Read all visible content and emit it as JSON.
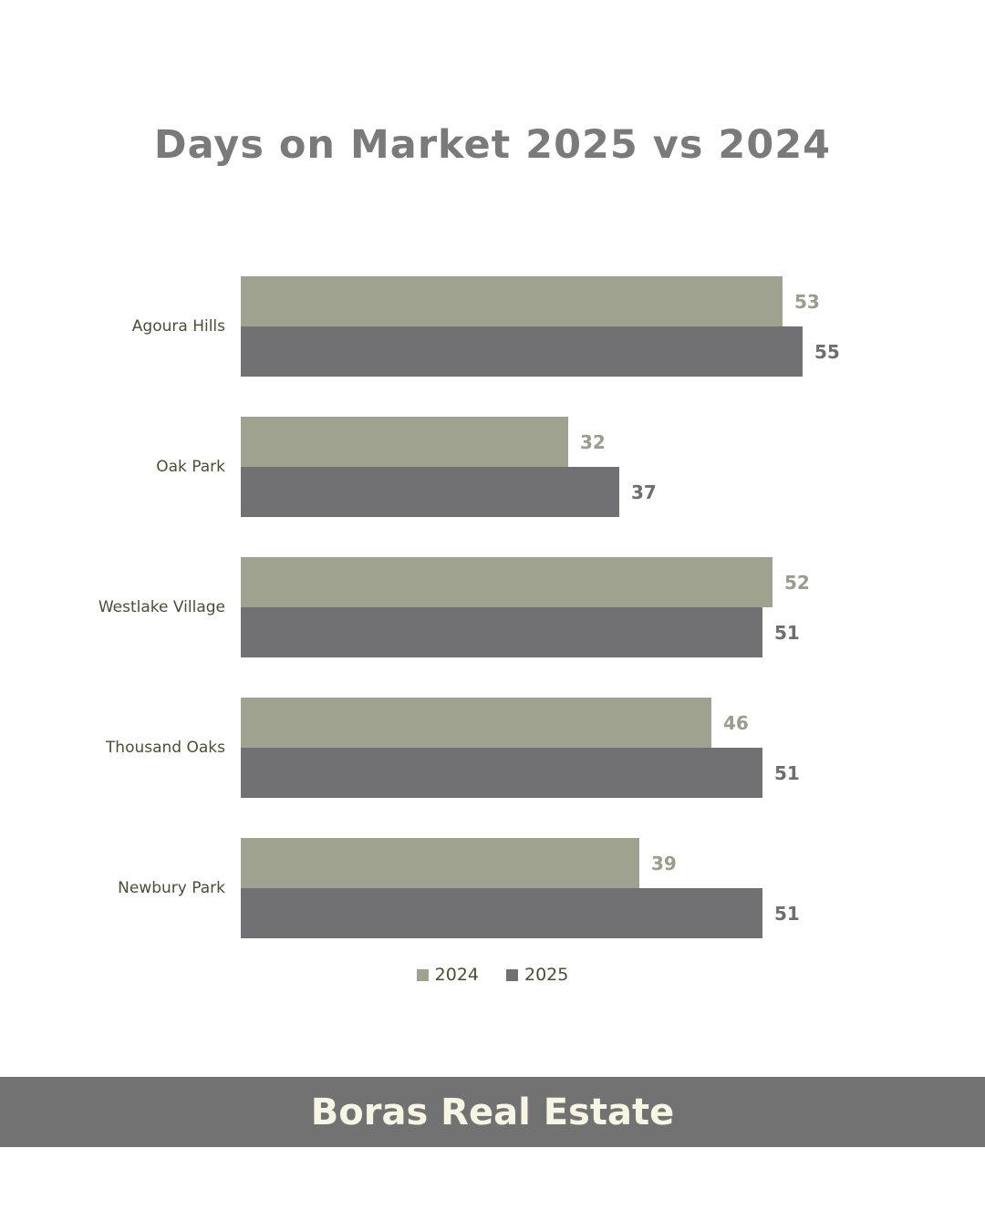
{
  "page": {
    "background": "#ffffff"
  },
  "header": {
    "title": "Days on Market 2025 vs 2024",
    "title_color": "#7a7a7a"
  },
  "chart_data": {
    "type": "bar",
    "orientation": "horizontal",
    "title": "Days on Market 2025 vs 2024",
    "categories": [
      "Agoura Hills",
      "Oak Park",
      "Westlake Village",
      "Thousand Oaks",
      "Newbury Park"
    ],
    "series": [
      {
        "name": "2024",
        "color": "#9ea28f",
        "label_color": "#999d8a",
        "values": [
          53,
          32,
          52,
          46,
          39
        ]
      },
      {
        "name": "2025",
        "color": "#717073",
        "label_color": "#6e6d70",
        "values": [
          55,
          37,
          51,
          51,
          51
        ]
      }
    ],
    "xlabel": "",
    "ylabel": "",
    "xlim": [
      0,
      58
    ],
    "grid": false,
    "legend_position": "bottom",
    "category_label_color": "#4a4e35",
    "value_labels_shown": true
  },
  "footer": {
    "label": "Boras Real Estate",
    "background": "#737273",
    "text_color": "#f7f5e3"
  }
}
